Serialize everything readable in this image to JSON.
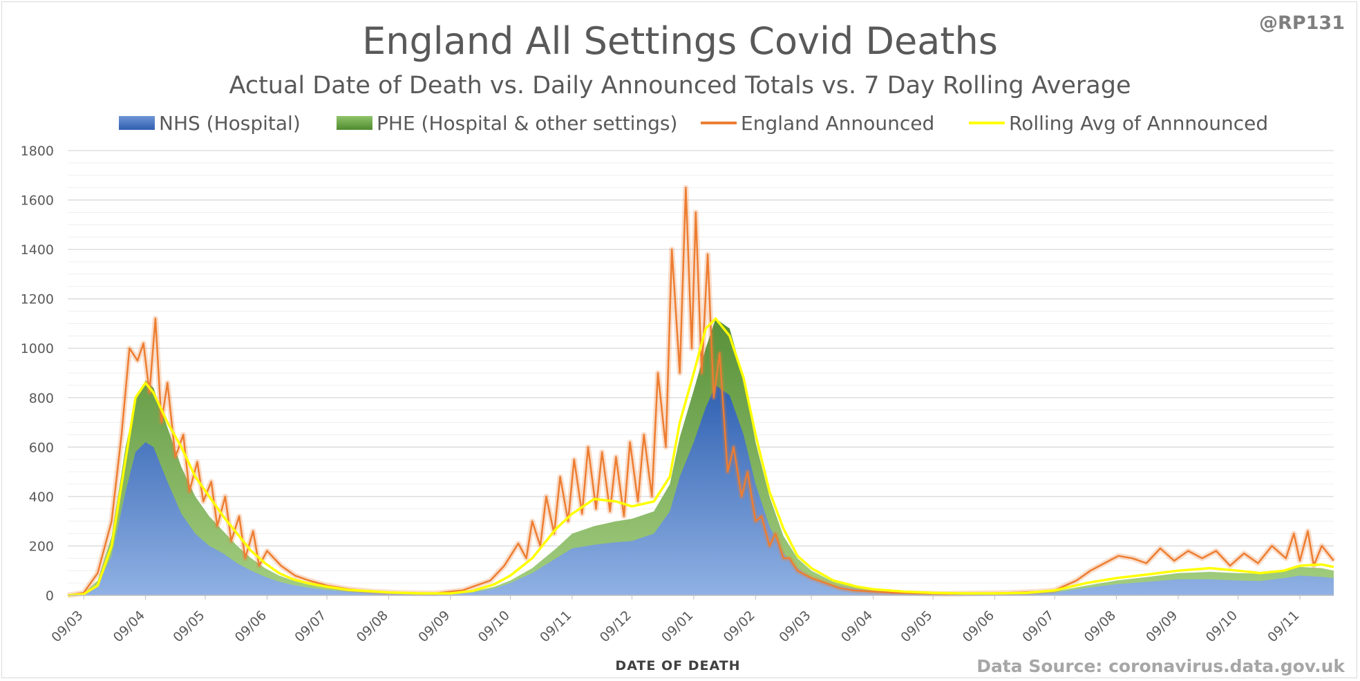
{
  "header": {
    "title": "England All Settings Covid Deaths",
    "subtitle": "Actual Date of Death vs. Daily Announced Totals vs. 7 Day Rolling Average",
    "handle": "@RP131",
    "source": "Data Source: coronavirus.data.gov.uk"
  },
  "colors": {
    "nhs": "#4472c4",
    "phe": "#70ad47",
    "announced": "#ed7d31",
    "rolling": "#ffff00",
    "grid": "#d9d9d9"
  },
  "chart_data": {
    "type": "area",
    "title": "England All Settings Covid Deaths",
    "subtitle": "Actual Date of Death vs. Daily Announced Totals vs. 7 Day Rolling Average",
    "xlabel": "DATE OF DEATH",
    "ylabel": "",
    "ylim": [
      0,
      1800
    ],
    "xlim": [
      "2020-03-01",
      "2021-11-26"
    ],
    "yticks": [
      0,
      200,
      400,
      600,
      800,
      1000,
      1200,
      1400,
      1600,
      1800
    ],
    "xticks": [
      "09/03",
      "09/04",
      "09/05",
      "09/06",
      "09/07",
      "09/08",
      "09/09",
      "09/10",
      "09/11",
      "09/12",
      "09/01",
      "09/02",
      "09/03",
      "09/04",
      "09/05",
      "09/06",
      "09/07",
      "09/08",
      "09/09",
      "09/10",
      "09/11"
    ],
    "xtick_dates": [
      "2020-03-09",
      "2020-04-09",
      "2020-05-09",
      "2020-06-09",
      "2020-07-09",
      "2020-08-09",
      "2020-09-09",
      "2020-10-09",
      "2020-11-09",
      "2020-12-09",
      "2021-01-09",
      "2021-02-09",
      "2021-03-09",
      "2021-04-09",
      "2021-05-09",
      "2021-06-09",
      "2021-07-09",
      "2021-08-09",
      "2021-09-09",
      "2021-10-09",
      "2021-11-09"
    ],
    "grid": true,
    "legend_position": "top",
    "series": [
      {
        "name": "NHS (Hospital)",
        "kind": "area",
        "x": [
          "2020-03-01",
          "2020-03-09",
          "2020-03-16",
          "2020-03-23",
          "2020-03-30",
          "2020-04-04",
          "2020-04-09",
          "2020-04-13",
          "2020-04-20",
          "2020-04-27",
          "2020-05-04",
          "2020-05-11",
          "2020-05-18",
          "2020-05-25",
          "2020-06-01",
          "2020-06-08",
          "2020-06-15",
          "2020-06-22",
          "2020-06-29",
          "2020-07-09",
          "2020-07-20",
          "2020-08-09",
          "2020-08-25",
          "2020-09-09",
          "2020-09-20",
          "2020-10-01",
          "2020-10-09",
          "2020-10-20",
          "2020-11-01",
          "2020-11-09",
          "2020-11-20",
          "2020-12-01",
          "2020-12-09",
          "2020-12-20",
          "2020-12-28",
          "2021-01-02",
          "2021-01-09",
          "2021-01-15",
          "2021-01-20",
          "2021-01-27",
          "2021-02-03",
          "2021-02-09",
          "2021-02-16",
          "2021-02-23",
          "2021-03-02",
          "2021-03-09",
          "2021-03-20",
          "2021-04-01",
          "2021-04-09",
          "2021-04-25",
          "2021-05-09",
          "2021-05-25",
          "2021-06-09",
          "2021-06-25",
          "2021-07-09",
          "2021-07-25",
          "2021-08-09",
          "2021-08-25",
          "2021-09-09",
          "2021-09-25",
          "2021-10-09",
          "2021-10-20",
          "2021-11-01",
          "2021-11-09",
          "2021-11-20",
          "2021-11-26"
        ],
        "values": [
          0,
          5,
          40,
          160,
          420,
          580,
          620,
          600,
          460,
          330,
          250,
          200,
          170,
          130,
          100,
          75,
          55,
          42,
          32,
          22,
          15,
          8,
          6,
          6,
          12,
          28,
          50,
          90,
          150,
          190,
          205,
          215,
          220,
          250,
          340,
          480,
          620,
          760,
          850,
          810,
          650,
          450,
          280,
          170,
          110,
          70,
          40,
          25,
          15,
          9,
          6,
          5,
          5,
          6,
          12,
          30,
          45,
          55,
          65,
          65,
          60,
          58,
          70,
          80,
          75,
          70
        ]
      },
      {
        "name": "PHE (Hospital & other settings)",
        "kind": "area",
        "x": [
          "2020-03-01",
          "2020-03-09",
          "2020-03-16",
          "2020-03-23",
          "2020-03-30",
          "2020-04-04",
          "2020-04-09",
          "2020-04-13",
          "2020-04-20",
          "2020-04-27",
          "2020-05-04",
          "2020-05-11",
          "2020-05-18",
          "2020-05-25",
          "2020-06-01",
          "2020-06-08",
          "2020-06-15",
          "2020-06-22",
          "2020-06-29",
          "2020-07-09",
          "2020-07-20",
          "2020-08-09",
          "2020-08-25",
          "2020-09-09",
          "2020-09-20",
          "2020-10-01",
          "2020-10-09",
          "2020-10-20",
          "2020-11-01",
          "2020-11-09",
          "2020-11-20",
          "2020-12-01",
          "2020-12-09",
          "2020-12-20",
          "2020-12-28",
          "2021-01-02",
          "2021-01-09",
          "2021-01-15",
          "2021-01-20",
          "2021-01-27",
          "2021-02-03",
          "2021-02-09",
          "2021-02-16",
          "2021-02-23",
          "2021-03-02",
          "2021-03-09",
          "2021-03-20",
          "2021-04-01",
          "2021-04-09",
          "2021-04-25",
          "2021-05-09",
          "2021-05-25",
          "2021-06-09",
          "2021-06-25",
          "2021-07-09",
          "2021-07-25",
          "2021-08-09",
          "2021-08-25",
          "2021-09-09",
          "2021-09-25",
          "2021-10-09",
          "2021-10-20",
          "2021-11-01",
          "2021-11-09",
          "2021-11-20",
          "2021-11-26"
        ],
        "values": [
          0,
          8,
          60,
          240,
          600,
          790,
          870,
          840,
          680,
          520,
          400,
          320,
          260,
          200,
          150,
          110,
          80,
          60,
          45,
          30,
          20,
          10,
          8,
          8,
          15,
          35,
          60,
          110,
          190,
          250,
          280,
          300,
          310,
          340,
          450,
          640,
          830,
          1000,
          1120,
          1080,
          880,
          620,
          400,
          240,
          150,
          100,
          55,
          32,
          20,
          12,
          8,
          7,
          7,
          8,
          16,
          40,
          60,
          75,
          90,
          95,
          90,
          88,
          100,
          115,
          110,
          100
        ]
      },
      {
        "name": "England Announced",
        "kind": "line",
        "x": [
          "2020-03-01",
          "2020-03-09",
          "2020-03-16",
          "2020-03-23",
          "2020-03-28",
          "2020-04-01",
          "2020-04-05",
          "2020-04-08",
          "2020-04-11",
          "2020-04-14",
          "2020-04-17",
          "2020-04-20",
          "2020-04-24",
          "2020-04-28",
          "2020-05-01",
          "2020-05-05",
          "2020-05-08",
          "2020-05-12",
          "2020-05-15",
          "2020-05-19",
          "2020-05-22",
          "2020-05-26",
          "2020-05-29",
          "2020-06-02",
          "2020-06-05",
          "2020-06-09",
          "2020-06-16",
          "2020-06-23",
          "2020-06-30",
          "2020-07-09",
          "2020-07-20",
          "2020-08-01",
          "2020-08-15",
          "2020-09-01",
          "2020-09-15",
          "2020-09-29",
          "2020-10-06",
          "2020-10-13",
          "2020-10-17",
          "2020-10-20",
          "2020-10-24",
          "2020-10-27",
          "2020-10-31",
          "2020-11-03",
          "2020-11-07",
          "2020-11-10",
          "2020-11-14",
          "2020-11-17",
          "2020-11-21",
          "2020-11-24",
          "2020-11-28",
          "2020-12-01",
          "2020-12-05",
          "2020-12-08",
          "2020-12-12",
          "2020-12-15",
          "2020-12-19",
          "2020-12-22",
          "2020-12-26",
          "2020-12-29",
          "2021-01-02",
          "2021-01-05",
          "2021-01-08",
          "2021-01-10",
          "2021-01-13",
          "2021-01-16",
          "2021-01-19",
          "2021-01-22",
          "2021-01-26",
          "2021-01-29",
          "2021-02-02",
          "2021-02-05",
          "2021-02-09",
          "2021-02-12",
          "2021-02-16",
          "2021-02-19",
          "2021-02-23",
          "2021-02-26",
          "2021-03-02",
          "2021-03-09",
          "2021-03-16",
          "2021-03-23",
          "2021-03-30",
          "2021-04-09",
          "2021-04-20",
          "2021-05-01",
          "2021-05-15",
          "2021-06-01",
          "2021-06-15",
          "2021-07-01",
          "2021-07-09",
          "2021-07-20",
          "2021-07-27",
          "2021-08-03",
          "2021-08-10",
          "2021-08-17",
          "2021-08-24",
          "2021-08-31",
          "2021-09-07",
          "2021-09-14",
          "2021-09-21",
          "2021-09-28",
          "2021-10-05",
          "2021-10-12",
          "2021-10-19",
          "2021-10-26",
          "2021-11-02",
          "2021-11-06",
          "2021-11-09",
          "2021-11-13",
          "2021-11-16",
          "2021-11-20",
          "2021-11-26"
        ],
        "values": [
          0,
          10,
          90,
          300,
          650,
          1000,
          950,
          1020,
          820,
          1120,
          700,
          860,
          560,
          650,
          420,
          540,
          380,
          460,
          280,
          400,
          220,
          320,
          150,
          260,
          120,
          180,
          120,
          80,
          60,
          40,
          25,
          15,
          10,
          8,
          20,
          60,
          120,
          210,
          150,
          300,
          200,
          400,
          250,
          480,
          300,
          550,
          330,
          600,
          350,
          580,
          340,
          560,
          320,
          620,
          380,
          650,
          400,
          900,
          600,
          1400,
          900,
          1650,
          1000,
          1550,
          900,
          1380,
          800,
          980,
          500,
          600,
          400,
          500,
          300,
          320,
          200,
          250,
          150,
          150,
          100,
          70,
          50,
          30,
          20,
          15,
          10,
          8,
          6,
          8,
          10,
          15,
          20,
          60,
          100,
          130,
          160,
          150,
          130,
          190,
          140,
          180,
          150,
          180,
          120,
          170,
          130,
          200,
          150,
          250,
          140,
          260,
          120,
          200,
          140
        ]
      },
      {
        "name": "Rolling Avg of Annnounced",
        "kind": "line",
        "x": [
          "2020-03-01",
          "2020-03-09",
          "2020-03-16",
          "2020-03-23",
          "2020-03-30",
          "2020-04-04",
          "2020-04-09",
          "2020-04-13",
          "2020-04-20",
          "2020-04-27",
          "2020-05-04",
          "2020-05-11",
          "2020-05-18",
          "2020-05-25",
          "2020-06-01",
          "2020-06-08",
          "2020-06-15",
          "2020-06-22",
          "2020-06-29",
          "2020-07-09",
          "2020-07-20",
          "2020-08-09",
          "2020-08-25",
          "2020-09-09",
          "2020-09-20",
          "2020-10-01",
          "2020-10-09",
          "2020-10-20",
          "2020-11-01",
          "2020-11-09",
          "2020-11-20",
          "2020-12-01",
          "2020-12-09",
          "2020-12-20",
          "2020-12-28",
          "2021-01-02",
          "2021-01-09",
          "2021-01-15",
          "2021-01-20",
          "2021-01-27",
          "2021-02-03",
          "2021-02-09",
          "2021-02-16",
          "2021-02-23",
          "2021-03-02",
          "2021-03-09",
          "2021-03-20",
          "2021-04-01",
          "2021-04-09",
          "2021-04-25",
          "2021-05-09",
          "2021-05-25",
          "2021-06-09",
          "2021-06-25",
          "2021-07-09",
          "2021-07-25",
          "2021-08-09",
          "2021-08-25",
          "2021-09-09",
          "2021-09-25",
          "2021-10-09",
          "2021-10-20",
          "2021-11-01",
          "2021-11-09",
          "2021-11-20",
          "2021-11-26"
        ],
        "values": [
          0,
          5,
          40,
          200,
          550,
          800,
          860,
          820,
          700,
          600,
          480,
          400,
          320,
          250,
          180,
          130,
          90,
          65,
          50,
          35,
          22,
          12,
          8,
          8,
          18,
          45,
          80,
          150,
          270,
          330,
          390,
          380,
          360,
          380,
          480,
          700,
          900,
          1080,
          1120,
          1050,
          880,
          650,
          420,
          270,
          160,
          110,
          60,
          35,
          25,
          15,
          10,
          8,
          8,
          10,
          20,
          50,
          70,
          85,
          100,
          110,
          100,
          90,
          100,
          120,
          125,
          115
        ]
      }
    ]
  }
}
